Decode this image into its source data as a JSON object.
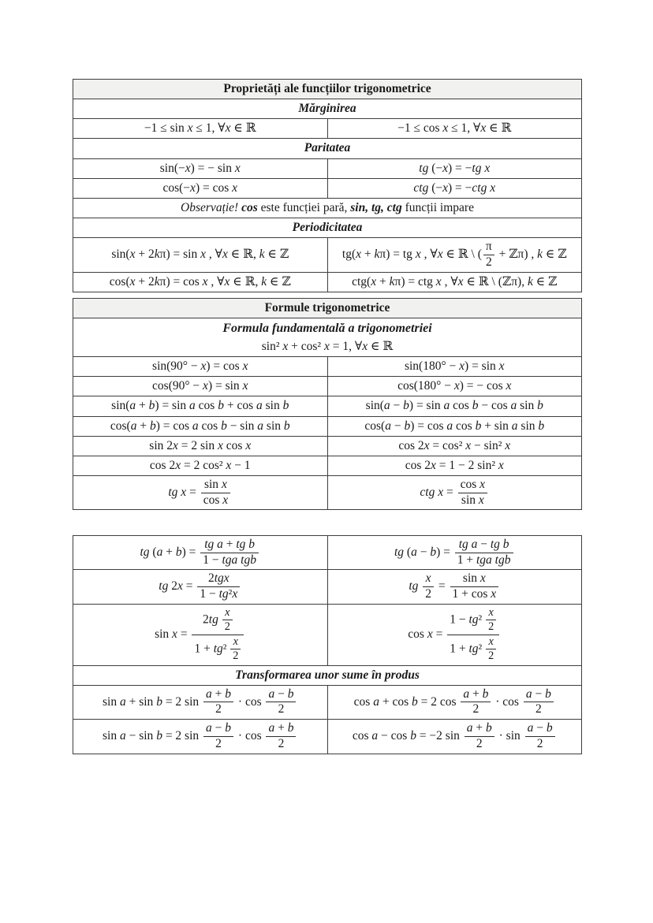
{
  "document": {
    "language": "ro",
    "kind": "trigonometry-formula-sheet"
  },
  "colors": {
    "page_bg": "#ffffff",
    "border": "#3d3d3d",
    "header_bg": "#f1f1ef",
    "text": "#1a1a1a",
    "fraction_bar": "#2a2a2a"
  },
  "tables": [
    {
      "name": "properties-table",
      "position_class": "t1",
      "rows": [
        {
          "type": "header",
          "text": "Proprietăți ale funcțiilor trigonometrice"
        },
        {
          "type": "section",
          "text": "Mărginirea"
        },
        {
          "type": "columns",
          "cells": [
            "−1 ≤ sin *x* ≤ 1, ∀*x* ∈ ℝ",
            "−1 ≤ cos *x* ≤ 1, ∀*x* ∈ ℝ"
          ]
        },
        {
          "type": "section",
          "text": "Paritatea"
        },
        {
          "type": "columns",
          "cells": [
            "sin(−*x*) = − sin *x*",
            "*tg* (−*x*) = −*tg x*"
          ]
        },
        {
          "type": "columns",
          "cells": [
            "cos(−*x*) = cos *x*",
            "*ctg* (−*x*) = −*ctg x*"
          ]
        },
        {
          "type": "note",
          "parts": [
            {
              "t": "Observație!",
              "s": "i"
            },
            {
              "t": " "
            },
            {
              "t": "cos",
              "s": "bi"
            },
            {
              "t": " este funcției pară, "
            },
            {
              "t": "sin, tg, ctg",
              "s": "bi"
            },
            {
              "t": " funcții impare"
            }
          ]
        },
        {
          "type": "section",
          "text": "Periodicitatea"
        },
        {
          "type": "columns",
          "cells": [
            "sin(*x* + 2*k*π) = sin *x* , ∀*x* ∈ ℝ, *k* ∈ ℤ",
            [
              {
                "t": "tg(*x* + *k*π) = tg *x* , ∀*x* ∈ ℝ \\ ("
              },
              {
                "frac": [
                  "π",
                  "2"
                ]
              },
              {
                "t": " + ℤπ) , *k* ∈ ℤ"
              }
            ]
          ]
        },
        {
          "type": "columns",
          "cells": [
            "cos(*x* + 2*k*π) = cos *x* , ∀*x* ∈ ℝ, *k* ∈ ℤ",
            "ctg(*x* + *k*π) = ctg *x* , ∀*x* ∈ ℝ \\ (ℤπ), *k* ∈ ℤ"
          ]
        }
      ]
    },
    {
      "name": "formulas-table",
      "position_class": "t2",
      "rows": [
        {
          "type": "header",
          "text": "Formule trigonometrice"
        },
        {
          "type": "section2",
          "title": "Formula fundamentală a trigonometriei",
          "formula": "sin² *x* + cos² *x* = 1, ∀*x* ∈ ℝ"
        },
        {
          "type": "columns",
          "cells": [
            "sin(90° − *x*) = cos *x*",
            "sin(180° − *x*) = sin *x*"
          ]
        },
        {
          "type": "columns",
          "cells": [
            "cos(90° − *x*) = sin *x*",
            "cos(180° − *x*) = − cos *x*"
          ]
        },
        {
          "type": "columns",
          "cells": [
            "sin(*a* + *b*) = sin *a* cos *b* + cos *a* sin *b*",
            "sin(*a* − *b*) = sin *a* cos *b* − cos *a* sin *b*"
          ]
        },
        {
          "type": "columns",
          "cells": [
            "cos(*a* + *b*) = cos *a* cos *b* − sin *a* sin *b*",
            "cos(*a* − *b*) = cos *a* cos *b* + sin *a* sin *b*"
          ]
        },
        {
          "type": "columns",
          "cells": [
            "sin 2*x* = 2 sin *x* cos *x*",
            "cos 2*x* = cos² *x* − sin² *x*"
          ]
        },
        {
          "type": "columns",
          "cells": [
            "cos 2*x* = 2 cos² *x* − 1",
            "cos 2*x* = 1 − 2 sin² *x*"
          ]
        },
        {
          "type": "columns",
          "cells": [
            [
              {
                "t": "*tg x* = "
              },
              {
                "frac": [
                  "sin *x*",
                  "cos *x*"
                ]
              }
            ],
            [
              {
                "t": "*ctg x* = "
              },
              {
                "frac": [
                  "cos *x*",
                  "sin *x*"
                ]
              }
            ]
          ]
        }
      ]
    },
    {
      "name": "tangent-and-sum-table",
      "position_class": "t3",
      "rows": [
        {
          "type": "columns",
          "cells": [
            [
              {
                "t": "*tg* (*a* + *b*) = "
              },
              {
                "frac": [
                  "*tg a* + *tg b*",
                  "1 − *tga tgb*"
                ]
              }
            ],
            [
              {
                "t": "*tg* (*a* − *b*) = "
              },
              {
                "frac": [
                  "*tg a* − *tg b*",
                  "1 + *tga tgb*"
                ]
              }
            ]
          ]
        },
        {
          "type": "columns",
          "cells": [
            [
              {
                "t": "*tg* 2*x* = "
              },
              {
                "frac": [
                  "2*tgx*",
                  "1 − *tg*²*x*"
                ]
              }
            ],
            [
              {
                "t": "*tg* "
              },
              {
                "frac": [
                  "*x*",
                  "2"
                ]
              },
              {
                "t": " = "
              },
              {
                "frac": [
                  "sin *x*",
                  "1 + cos *x*"
                ]
              }
            ]
          ]
        },
        {
          "type": "columns",
          "cells": [
            [
              {
                "t": "sin *x* = "
              },
              {
                "frac": [
                  [
                    {
                      "t": "2*tg* "
                    },
                    {
                      "frac": [
                        "*x*",
                        "2"
                      ]
                    }
                  ],
                  [
                    {
                      "t": "1 + *tg*² "
                    },
                    {
                      "frac": [
                        "*x*",
                        "2"
                      ]
                    }
                  ]
                ]
              }
            ],
            [
              {
                "t": "cos *x* = "
              },
              {
                "frac": [
                  [
                    {
                      "t": "1 − *tg*² "
                    },
                    {
                      "frac": [
                        "*x*",
                        "2"
                      ]
                    }
                  ],
                  [
                    {
                      "t": "1 + *tg*² "
                    },
                    {
                      "frac": [
                        "*x*",
                        "2"
                      ]
                    }
                  ]
                ]
              }
            ]
          ]
        },
        {
          "type": "section",
          "text": "Transformarea unor sume în produs"
        },
        {
          "type": "columns",
          "cells": [
            [
              {
                "t": "sin *a* + sin *b* = 2 sin "
              },
              {
                "frac": [
                  "*a* + *b*",
                  "2"
                ]
              },
              {
                "t": " · cos "
              },
              {
                "frac": [
                  "*a* − *b*",
                  "2"
                ]
              }
            ],
            [
              {
                "t": "cos *a* + cos *b* = 2 cos "
              },
              {
                "frac": [
                  "*a* + *b*",
                  "2"
                ]
              },
              {
                "t": " · cos "
              },
              {
                "frac": [
                  "*a* − *b*",
                  "2"
                ]
              }
            ]
          ]
        },
        {
          "type": "columns",
          "cells": [
            [
              {
                "t": "sin *a* − sin *b* = 2 sin "
              },
              {
                "frac": [
                  "*a* − *b*",
                  "2"
                ]
              },
              {
                "t": " · cos "
              },
              {
                "frac": [
                  "*a* + *b*",
                  "2"
                ]
              }
            ],
            [
              {
                "t": "cos *a* − cos *b* = −2 sin "
              },
              {
                "frac": [
                  "*a* + *b*",
                  "2"
                ]
              },
              {
                "t": " · sin "
              },
              {
                "frac": [
                  "*a* − *b*",
                  "2"
                ]
              }
            ]
          ]
        }
      ]
    }
  ]
}
